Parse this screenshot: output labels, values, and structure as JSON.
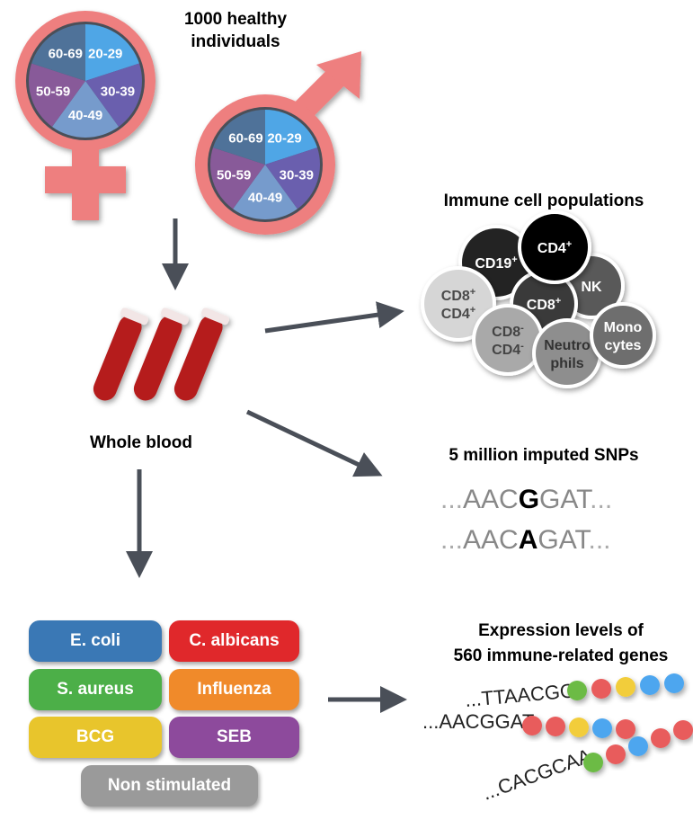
{
  "cohort": {
    "title_line1": "1000 healthy",
    "title_line2": "individuals",
    "age_groups": [
      "20-29",
      "30-39",
      "40-49",
      "50-59",
      "60-69"
    ],
    "age_colors": [
      "#4fa6e6",
      "#6a5fae",
      "#769bcc",
      "#885a99",
      "#4f7299"
    ],
    "female_icon": "female-symbol-icon",
    "male_icon": "male-symbol-icon"
  },
  "blood": {
    "label": "Whole blood",
    "icon": "blood-tubes-icon"
  },
  "immune": {
    "title": "Immune cell populations",
    "cells": [
      {
        "line1": "CD19",
        "sup1": "+",
        "line2": "",
        "sup2": "",
        "color": "#232323",
        "text": "#ffffff"
      },
      {
        "line1": "CD4",
        "sup1": "+",
        "line2": "",
        "sup2": "",
        "color": "#000000",
        "text": "#ffffff"
      },
      {
        "line1": "NK",
        "sup1": "",
        "line2": "",
        "sup2": "",
        "color": "#595959",
        "text": "#ffffff"
      },
      {
        "line1": "CD8",
        "sup1": "+",
        "line2": "",
        "sup2": "",
        "color": "#3a3a3a",
        "text": "#ffffff"
      },
      {
        "line1": "CD8",
        "sup1": "+",
        "line2": "CD4",
        "sup2": "+",
        "color": "#d6d6d6",
        "text": "#4a4a4a"
      },
      {
        "line1": "CD8",
        "sup1": "-",
        "line2": "CD4",
        "sup2": "-",
        "color": "#a9a9a9",
        "text": "#444444"
      },
      {
        "line1": "Neutro",
        "sup1": "",
        "line2": "phils",
        "sup2": "",
        "color": "#8e8e8e",
        "text": "#333333"
      },
      {
        "line1": "Mono",
        "sup1": "",
        "line2": "cytes",
        "sup2": "",
        "color": "#6e6e6e",
        "text": "#ffffff"
      }
    ]
  },
  "snps": {
    "title": "5 million imputed SNPs",
    "seq1": {
      "pre": "...",
      "left": "AAC",
      "variant": "G",
      "right": "GAT",
      "post": "..."
    },
    "seq2": {
      "pre": "...",
      "left": "AAC",
      "variant": "A",
      "right": "GAT",
      "post": "..."
    }
  },
  "stimuli": {
    "items": [
      {
        "label": "E. coli",
        "color": "#3a78b5"
      },
      {
        "label": "C. albicans",
        "color": "#e0282b"
      },
      {
        "label": "S. aureus",
        "color": "#4caf48"
      },
      {
        "label": "Influenza",
        "color": "#f08a2a"
      },
      {
        "label": "BCG",
        "color": "#e8c52c"
      },
      {
        "label": "SEB",
        "color": "#8d4a9c"
      },
      {
        "label": "Non stimulated",
        "color": "#9a9a9a"
      }
    ]
  },
  "expression": {
    "title_line1": "Expression levels of",
    "title_line2": "560 immune-related genes",
    "sequences": [
      "...TTAACGG",
      "...AACGGAT",
      "...CACGCAA"
    ],
    "bead_colors": {
      "green": "#6cbb45",
      "red": "#e85c5c",
      "yellow": "#f2cd3a",
      "blue": "#4da6ef"
    }
  }
}
